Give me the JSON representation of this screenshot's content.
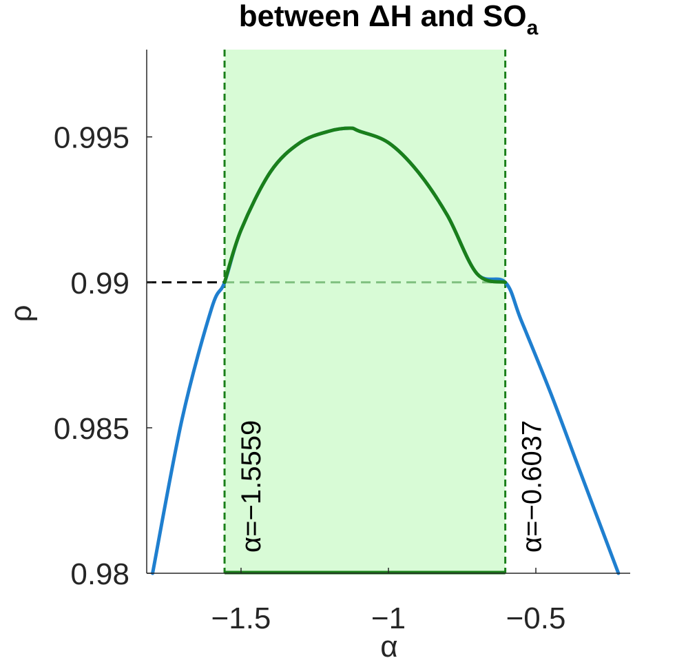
{
  "chart_data": {
    "type": "line",
    "title": "between ΔH and SO",
    "title_subscript": "a",
    "xlabel": "α",
    "ylabel": "ρ",
    "xlim": [
      -1.82,
      -0.18
    ],
    "ylim": [
      0.98,
      0.998
    ],
    "x_ticks": [
      -1.5,
      -1,
      -0.5
    ],
    "x_tick_labels": [
      "−1.5",
      "−1",
      "−0.5"
    ],
    "y_ticks": [
      0.98,
      0.985,
      0.99,
      0.995
    ],
    "y_tick_labels": [
      "0.98",
      "0.985",
      "0.99",
      "0.995"
    ],
    "grid": false,
    "threshold": 0.99,
    "region": {
      "x_start": -1.5559,
      "x_end": -0.6037
    },
    "annotations": [
      {
        "text": "α=−1.5559",
        "x": -1.5559
      },
      {
        "text": "α=−0.6037",
        "x": -0.6037
      }
    ],
    "series": [
      {
        "x": [
          -1.8,
          -1.7,
          -1.6,
          -1.5559,
          -1.5,
          -1.4,
          -1.3,
          -1.2,
          -1.13,
          -1.1,
          -1.0,
          -0.9,
          -0.8,
          -0.7,
          -0.6037,
          -0.55,
          -0.45,
          -0.35,
          -0.22
        ],
        "values": [
          0.98,
          0.9853,
          0.9891,
          0.99,
          0.9918,
          0.9938,
          0.9948,
          0.9952,
          0.9953,
          0.9952,
          0.9948,
          0.9938,
          0.9923,
          0.9903,
          0.99,
          0.9887,
          0.9862,
          0.9835,
          0.98
        ]
      }
    ],
    "colors": {
      "curve": "#1f7fcf",
      "highlight_curve": "#1a7f1a",
      "region_fill": "#d8fbd6",
      "region_line": "#1a7f1a",
      "threshold_line": "#000000",
      "threshold_in_region": "#7fc07f",
      "axis": "#262626"
    }
  }
}
